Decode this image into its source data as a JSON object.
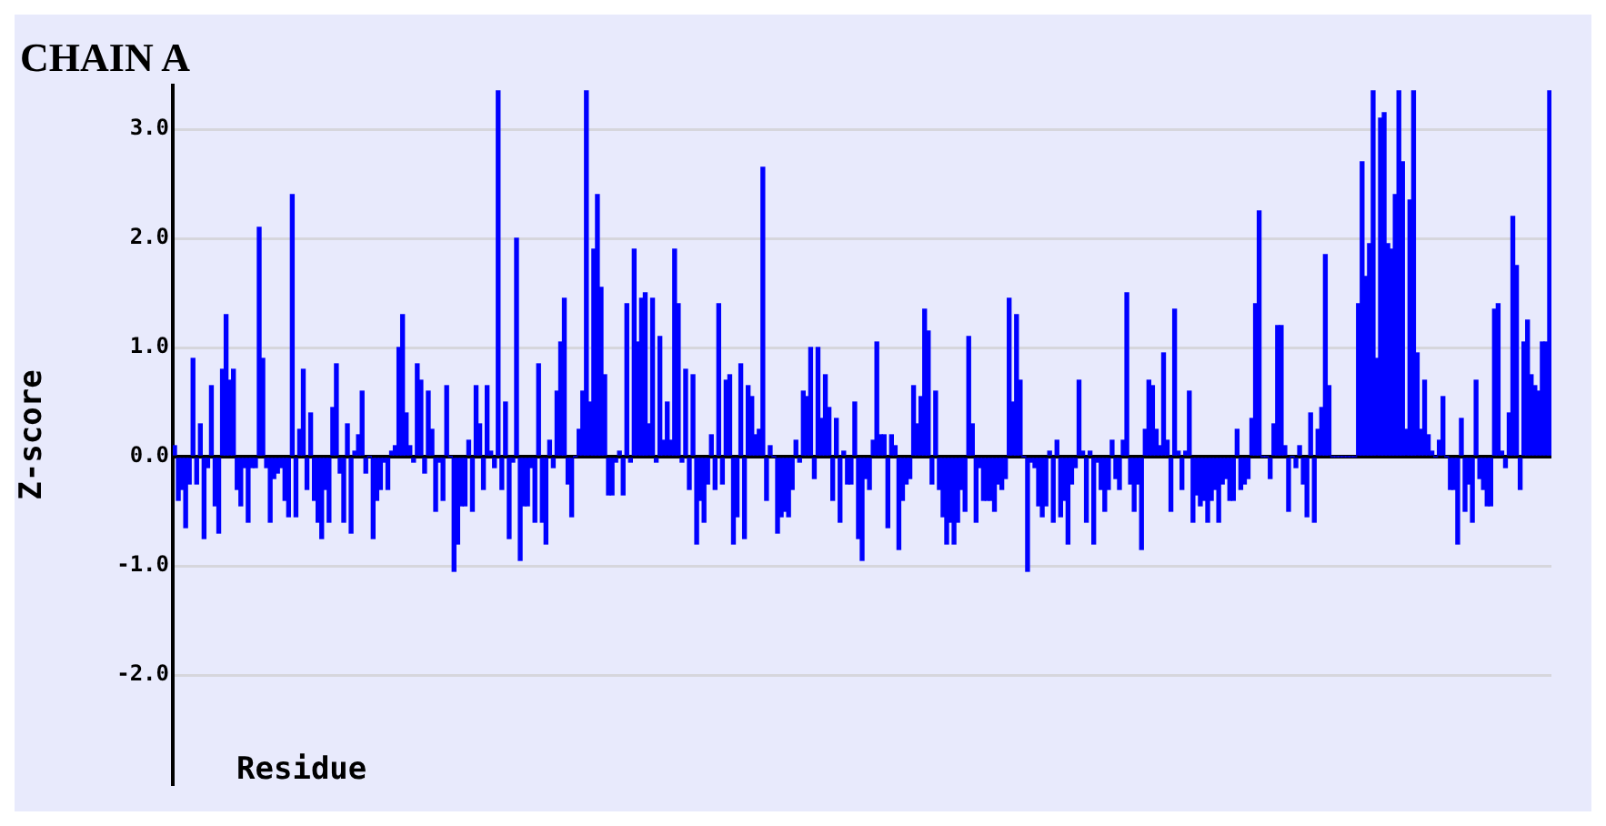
{
  "chart_data": {
    "type": "bar",
    "title": "CHAIN A",
    "xlabel": "Residue",
    "ylabel": "Z-score",
    "color": "#0000ff",
    "grid": "y",
    "ylim": [
      -3.0,
      3.4
    ],
    "yticks": [
      {
        "value": -2,
        "label": "-2.0"
      },
      {
        "value": -1,
        "label": "-1.0"
      },
      {
        "value": 0,
        "label": "0.0"
      },
      {
        "value": 1,
        "label": "1.0"
      },
      {
        "value": 2,
        "label": "2.0"
      },
      {
        "value": 3,
        "label": "3.0"
      }
    ],
    "values": [
      0.1,
      -0.4,
      -0.3,
      -0.65,
      -0.25,
      0.9,
      -0.25,
      0.3,
      -0.75,
      -0.1,
      0.65,
      -0.45,
      -0.7,
      0.8,
      1.3,
      0.7,
      0.8,
      -0.3,
      -0.45,
      -0.1,
      -0.6,
      -0.1,
      -0.1,
      2.1,
      0.9,
      -0.1,
      -0.6,
      -0.2,
      -0.15,
      -0.1,
      -0.4,
      -0.55,
      2.4,
      -0.55,
      0.25,
      0.8,
      -0.3,
      0.4,
      -0.4,
      -0.6,
      -0.75,
      -0.3,
      -0.6,
      0.45,
      0.85,
      -0.15,
      -0.6,
      0.3,
      -0.7,
      0.05,
      0.2,
      0.6,
      -0.15,
      0,
      -0.75,
      -0.4,
      -0.3,
      -0.05,
      -0.3,
      0.05,
      0.1,
      1.0,
      1.3,
      0.4,
      0.1,
      -0.05,
      0.85,
      0.7,
      -0.15,
      0.6,
      0.25,
      -0.5,
      -0.05,
      -0.4,
      0.65,
      0,
      -1.05,
      -0.8,
      -0.45,
      -0.45,
      0.15,
      -0.5,
      0.65,
      0.3,
      -0.3,
      0.65,
      0.05,
      -0.1,
      3.35,
      -0.3,
      0.5,
      -0.75,
      -0.05,
      2.0,
      -0.95,
      -0.45,
      -0.45,
      -0.1,
      -0.6,
      0.85,
      -0.6,
      -0.8,
      0.15,
      -0.1,
      0.6,
      1.05,
      1.45,
      -0.25,
      -0.55,
      0,
      0.25,
      0.6,
      3.35,
      0.5,
      1.9,
      2.4,
      1.55,
      0.75,
      -0.35,
      -0.35,
      -0.05,
      0.05,
      -0.35,
      1.4,
      -0.05,
      1.9,
      1.05,
      1.45,
      1.5,
      0.3,
      1.45,
      -0.05,
      1.1,
      0.15,
      0.5,
      0.15,
      1.9,
      1.4,
      -0.05,
      0.8,
      -0.3,
      0.75,
      -0.8,
      -0.4,
      -0.6,
      -0.25,
      0.2,
      -0.3,
      1.4,
      -0.25,
      0.7,
      0.75,
      -0.8,
      -0.55,
      0.85,
      -0.75,
      0.65,
      0.55,
      0.2,
      0.25,
      2.65,
      -0.4,
      0.1,
      0,
      -0.7,
      -0.55,
      -0.5,
      -0.55,
      -0.3,
      0.15,
      -0.05,
      0.6,
      0.55,
      1.0,
      -0.2,
      1.0,
      0.35,
      0.75,
      0.45,
      -0.4,
      0.35,
      -0.6,
      0.05,
      -0.25,
      -0.25,
      0.5,
      -0.75,
      -0.95,
      -0.2,
      -0.3,
      0.15,
      1.05,
      0.2,
      0.2,
      -0.65,
      0.2,
      0.1,
      -0.85,
      -0.4,
      -0.25,
      -0.2,
      0.65,
      0.3,
      0.55,
      1.35,
      1.15,
      -0.25,
      0.6,
      -0.3,
      -0.55,
      -0.8,
      -0.6,
      -0.8,
      -0.6,
      -0.3,
      -0.5,
      1.1,
      0.3,
      -0.6,
      -0.1,
      -0.4,
      -0.4,
      -0.4,
      -0.5,
      -0.25,
      -0.3,
      -0.2,
      1.45,
      0.5,
      1.3,
      0.7,
      0,
      -1.05,
      -0.05,
      -0.1,
      -0.45,
      -0.55,
      -0.45,
      0.05,
      -0.6,
      0.15,
      -0.55,
      -0.4,
      -0.8,
      -0.25,
      -0.1,
      0.7,
      0.05,
      -0.6,
      0.05,
      -0.8,
      -0.05,
      -0.3,
      -0.5,
      -0.3,
      0.15,
      -0.2,
      -0.3,
      0.15,
      1.5,
      -0.25,
      -0.5,
      -0.25,
      -0.85,
      0.25,
      0.7,
      0.65,
      0.25,
      0.1,
      0.95,
      0.15,
      -0.5,
      1.35,
      0.05,
      -0.3,
      0.05,
      0.6,
      -0.6,
      -0.35,
      -0.45,
      -0.4,
      -0.6,
      -0.4,
      -0.3,
      -0.6,
      -0.25,
      -0.2,
      -0.4,
      -0.4,
      0.25,
      -0.3,
      -0.25,
      -0.2,
      0.35,
      1.4,
      2.25,
      0,
      0,
      -0.2,
      0.3,
      1.2,
      1.2,
      0.1,
      -0.5,
      0,
      -0.1,
      0.1,
      -0.25,
      -0.55,
      0.4,
      -0.6,
      0.25,
      0.45,
      1.85,
      0.65,
      0,
      0,
      0,
      0,
      0,
      0,
      0,
      1.4,
      2.7,
      1.65,
      1.95,
      3.35,
      0.9,
      3.1,
      3.15,
      1.95,
      1.9,
      2.4,
      3.35,
      2.7,
      0.25,
      2.35,
      3.35,
      0.95,
      0.25,
      0.7,
      0.2,
      0.05,
      0,
      0.15,
      0.55,
      0,
      -0.3,
      -0.3,
      -0.8,
      0.35,
      -0.5,
      -0.25,
      -0.6,
      0.7,
      -0.2,
      -0.3,
      -0.45,
      -0.45,
      1.35,
      1.4,
      0.05,
      -0.1,
      0.4,
      2.2,
      1.75,
      -0.3,
      1.05,
      1.25,
      0.75,
      0.65,
      0.6,
      1.05,
      1.05,
      3.35
    ]
  }
}
